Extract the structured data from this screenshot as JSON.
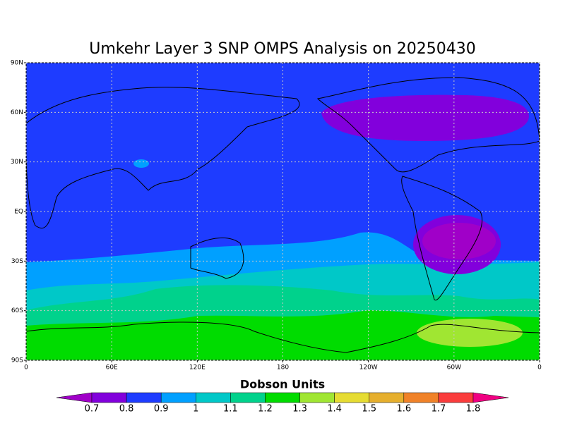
{
  "chart_data": {
    "type": "contour-map",
    "title": "Umkehr Layer 3 SNP OMPS Analysis on 20250430",
    "xlim": [
      0,
      360
    ],
    "ylim": [
      -90,
      90
    ],
    "xticks": [
      0,
      {
        "value": 60,
        "label": "60E"
      },
      {
        "value": 120,
        "label": "120E"
      },
      180,
      {
        "value": 240,
        "label": "120W"
      },
      {
        "value": 300,
        "label": "60W"
      },
      {
        "value": 360,
        "label": "0"
      }
    ],
    "yticks": [
      {
        "value": -90,
        "label": "90S"
      },
      {
        "value": -60,
        "label": "60S"
      },
      {
        "value": -30,
        "label": "30S"
      },
      {
        "value": 0,
        "label": "EQ"
      },
      {
        "value": 30,
        "label": "30N"
      },
      {
        "value": 60,
        "label": "60N"
      },
      {
        "value": 90,
        "label": "90N"
      }
    ],
    "grid": true,
    "colorbar": {
      "title": "Dobson Units",
      "levels": [
        0.7,
        0.8,
        0.9,
        1,
        1.1,
        1.2,
        1.3,
        1.4,
        1.5,
        1.6,
        1.7,
        1.8
      ],
      "colors": [
        "#a000c8",
        "#8200dc",
        "#1e3cff",
        "#00a0ff",
        "#00c8c8",
        "#00d28c",
        "#00dc00",
        "#a0e632",
        "#e6dc32",
        "#e6af2d",
        "#f08228",
        "#fa3c3c",
        "#f00082"
      ]
    }
  }
}
